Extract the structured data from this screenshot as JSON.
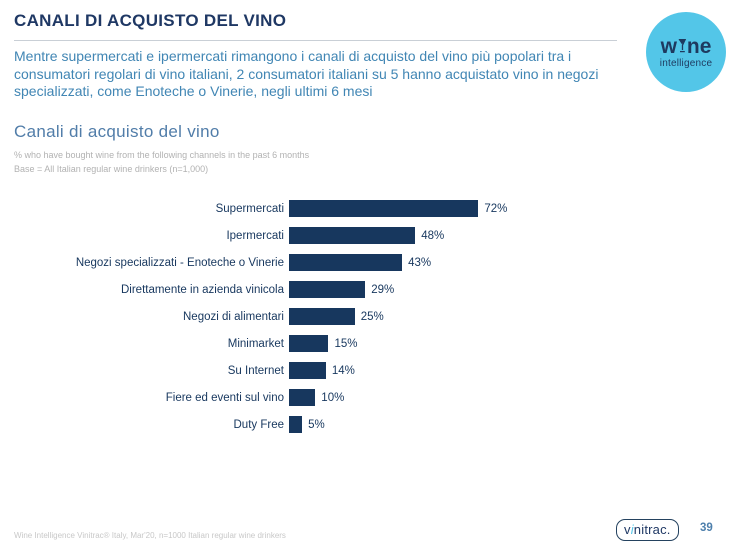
{
  "header": {
    "title": "CANALI DI ACQUISTO DEL VINO",
    "intro": "Mentre supermercati e ipermercati rimangono i canali di acquisto del vino più popolari tra i consumatori regolari di vino italiani, 2 consumatori italiani su 5 hanno acquistato vino in negozi specializzati, come Enoteche o Vinerie, negli ultimi 6 mesi"
  },
  "logo": {
    "word_part1": "w",
    "word_part2": "ne",
    "tagline": "intelligence",
    "circle_color": "#53C6E8",
    "text_color": "#1E3A5F"
  },
  "section": {
    "subtitle_line1": "% who have bought wine from the following channels in the past 6 months",
    "subtitle_line2": "Base = All Italian regular wine drinkers (n=1,000)"
  },
  "chart_data": {
    "type": "bar",
    "orientation": "horizontal",
    "title": "Canali di acquisto del vino",
    "categories": [
      "Supermercati",
      "Ipermercati",
      "Negozi specializzati - Enoteche o Vinerie",
      "Direttamente in azienda vinicola",
      "Negozi di alimentari",
      "Minimarket",
      "Su Internet",
      "Fiere ed eventi sul vino",
      "Duty Free"
    ],
    "values": [
      72,
      48,
      43,
      29,
      25,
      15,
      14,
      10,
      5
    ],
    "unit": "%",
    "bar_color": "#17375E",
    "xlim": [
      0,
      100
    ],
    "value_labels": true,
    "grid": false,
    "legend": false
  },
  "footer": {
    "source": "Wine Intelligence Vinitrac® Italy, Mar'20, n=1000 Italian regular wine drinkers",
    "brand_part1": "v",
    "brand_i": "i",
    "brand_part2": "nitrac.",
    "page": "39"
  }
}
